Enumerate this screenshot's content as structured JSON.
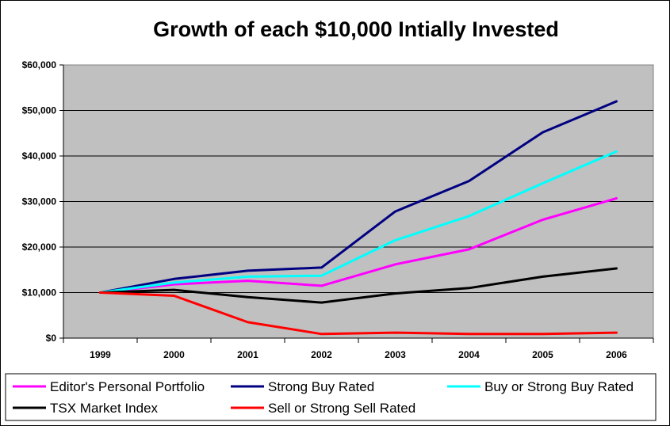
{
  "chart_data": {
    "type": "line",
    "title": "Growth of each $10,000 Intially Invested",
    "xlabel": "",
    "ylabel": "",
    "categories": [
      "1999",
      "2000",
      "2001",
      "2002",
      "2003",
      "2004",
      "2005",
      "2006"
    ],
    "y_tick_labels": [
      "$0",
      "$10,000",
      "$20,000",
      "$30,000",
      "$40,000",
      "$50,000",
      "$60,000"
    ],
    "ylim": [
      0,
      60000
    ],
    "grid": true,
    "plot_background": "#c0c0c0",
    "legend_position": "bottom",
    "series": [
      {
        "name": "Editor's Personal Portfolio",
        "color": "#ff00ff",
        "values": [
          10000,
          11800,
          12600,
          11500,
          16200,
          19500,
          26000,
          30700
        ]
      },
      {
        "name": "Strong Buy Rated",
        "color": "#000080",
        "values": [
          10000,
          13000,
          14800,
          15500,
          27800,
          34500,
          45200,
          52000
        ]
      },
      {
        "name": "Buy or Strong Buy Rated",
        "color": "#00ffff",
        "values": [
          10000,
          12200,
          13500,
          13700,
          21500,
          26800,
          34000,
          41000
        ]
      },
      {
        "name": "TSX Market Index",
        "color": "#000000",
        "values": [
          10000,
          10600,
          9000,
          7800,
          9800,
          11000,
          13500,
          15300
        ]
      },
      {
        "name": "Sell or Strong Sell Rated",
        "color": "#ff0000",
        "values": [
          10000,
          9300,
          3500,
          900,
          1200,
          900,
          900,
          1200
        ]
      }
    ]
  }
}
